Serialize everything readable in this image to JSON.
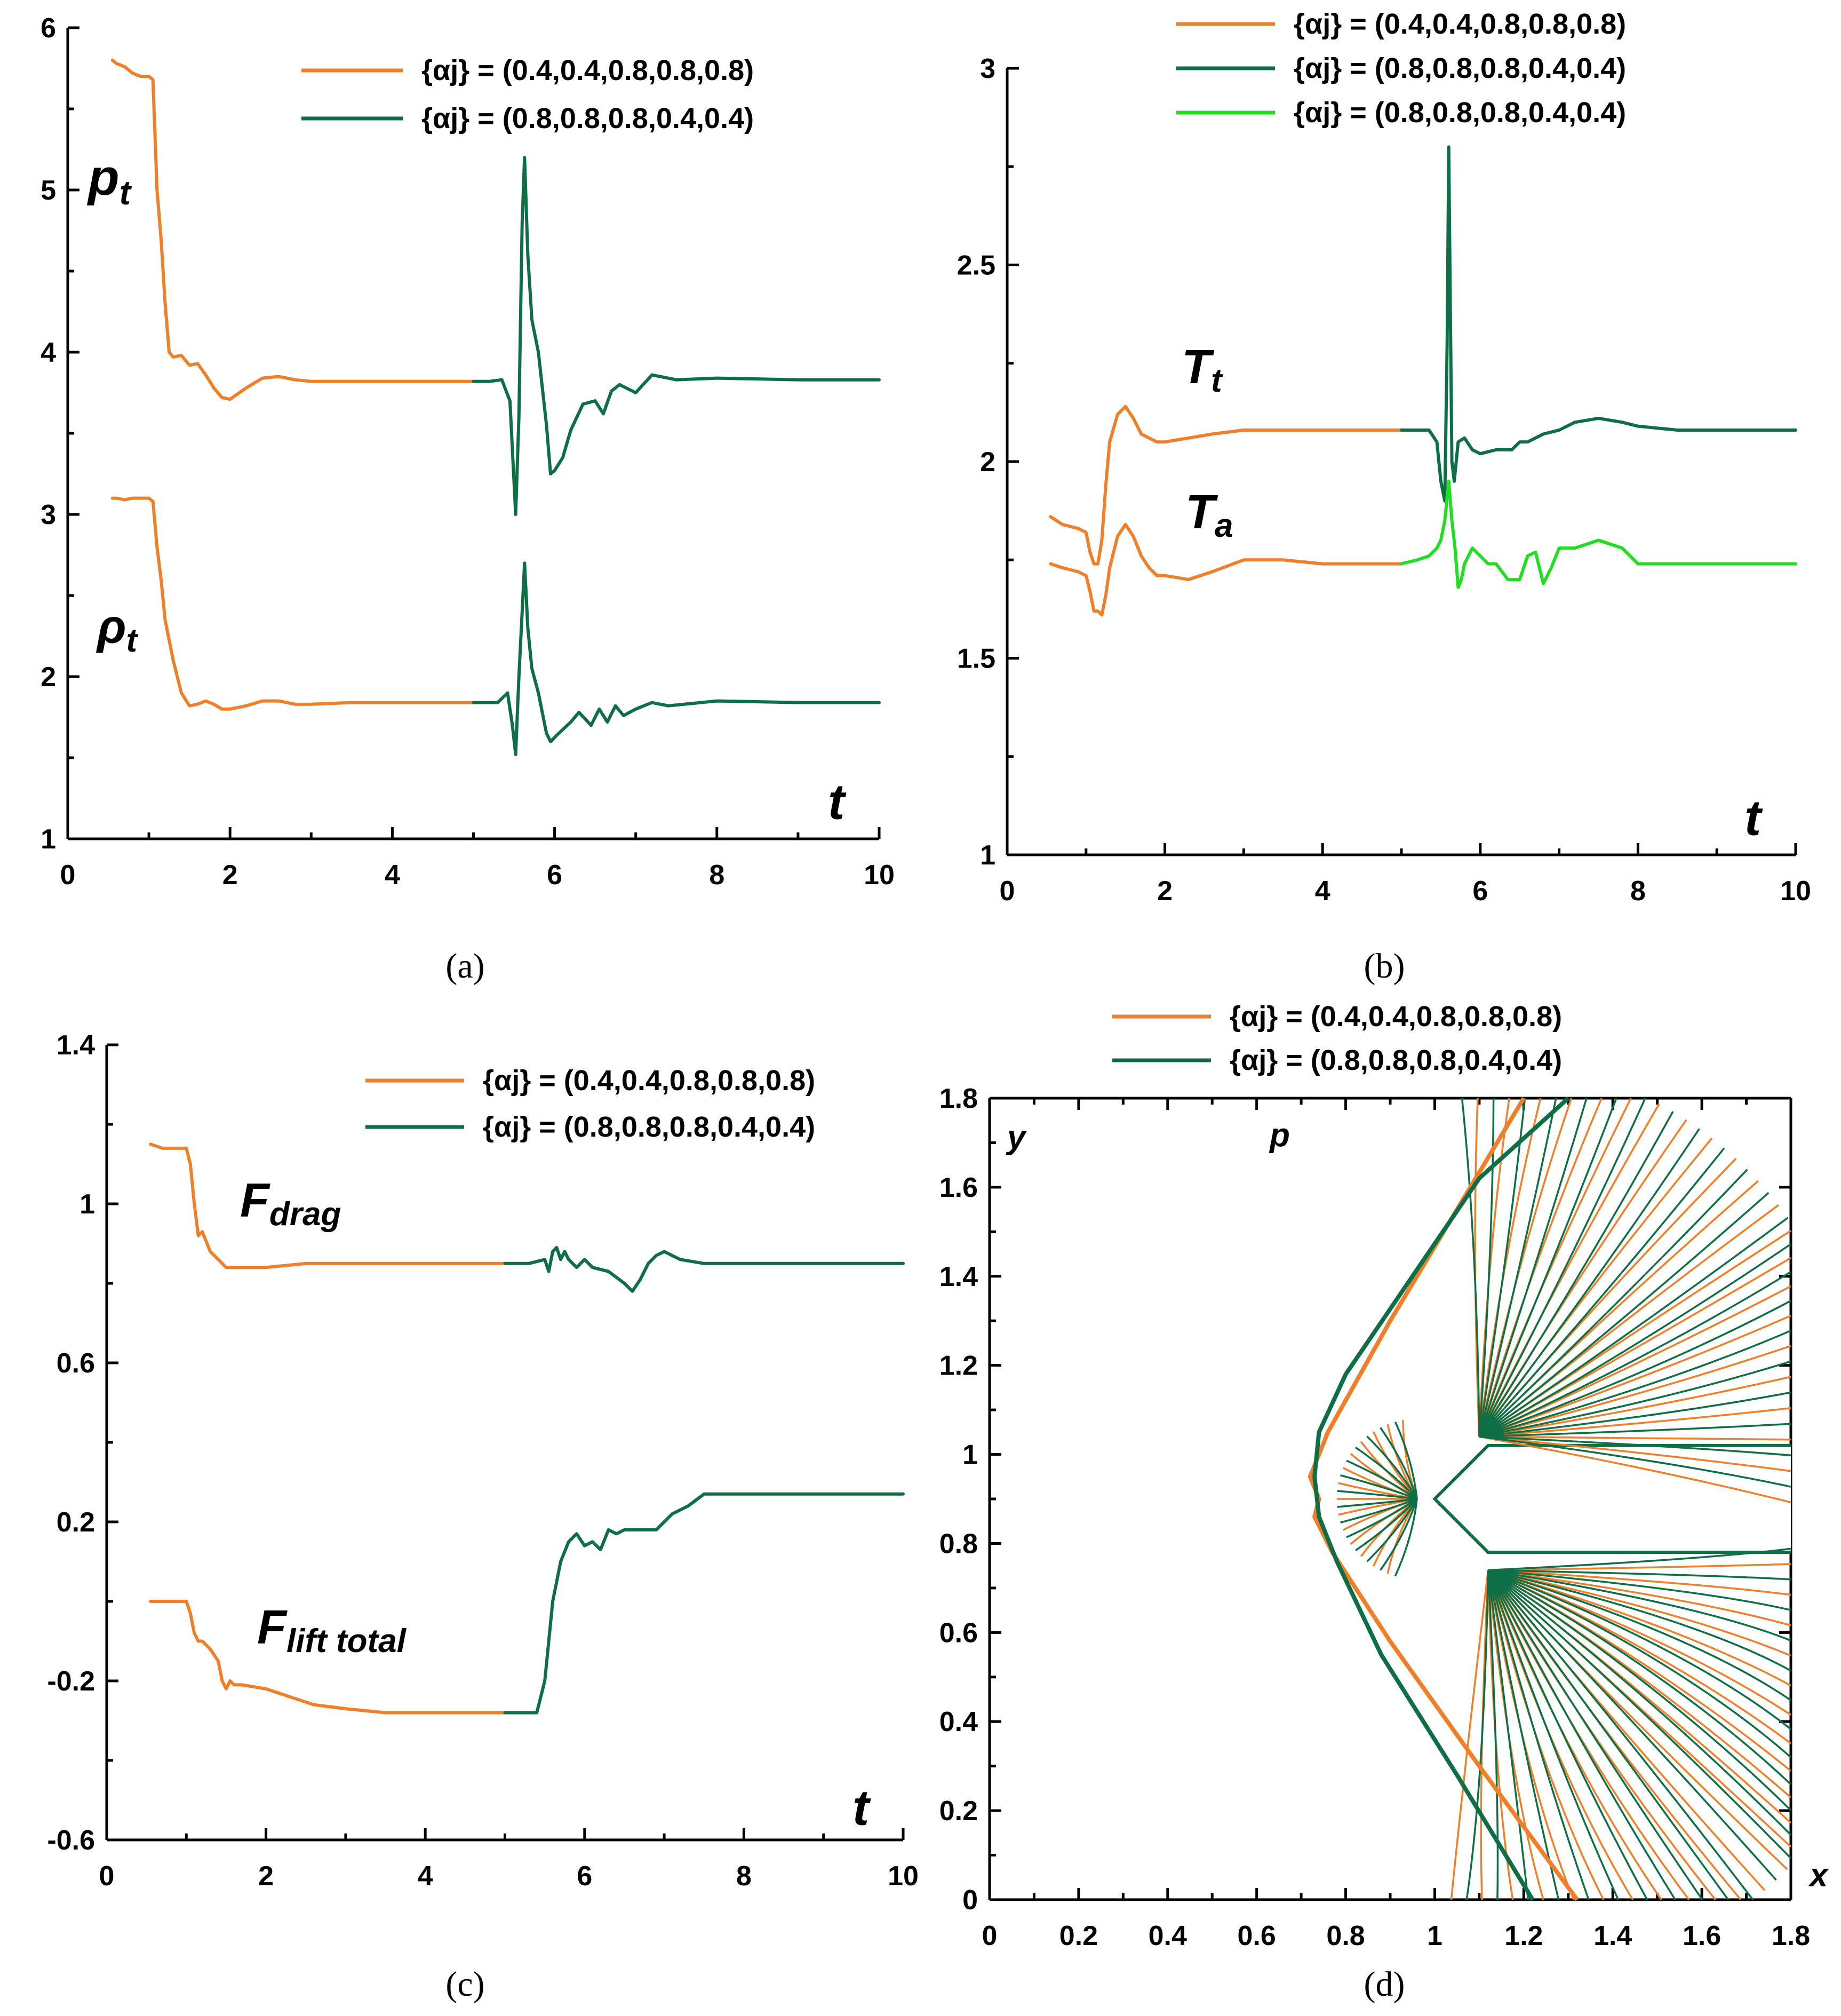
{
  "chart_data": [
    {
      "panel": "a",
      "caption": "(a)",
      "type": "line",
      "xlabel": "t",
      "xlim": [
        0,
        10
      ],
      "ylim": [
        1,
        6
      ],
      "x_ticks": [
        "0",
        "2",
        "4",
        "6",
        "8",
        "10"
      ],
      "y_ticks": [
        "1",
        "2",
        "3",
        "4",
        "5",
        "6"
      ],
      "legend": [
        {
          "label": "{αj} = (0.4,0.4,0.8,0.8,0.8)",
          "color": "#f07f2a"
        },
        {
          "label": "{αj} = (0.8,0.8,0.8,0.4,0.4)",
          "color": "#0e6e45"
        }
      ],
      "annotations": [
        {
          "text": "pt",
          "base": "p",
          "sub": "t"
        },
        {
          "text": "ρt",
          "base": "ρ",
          "sub": "t"
        }
      ],
      "series": [
        {
          "name": "pt, {αj} = (0.4,0.4,0.8,0.8,0.8)",
          "color": "#f07f2a",
          "x": [
            0.55,
            0.6,
            0.7,
            0.8,
            0.9,
            1.0,
            1.05,
            1.1,
            1.15,
            1.2,
            1.25,
            1.3,
            1.4,
            1.5,
            1.6,
            1.7,
            1.8,
            1.9,
            2.0,
            2.2,
            2.4,
            2.6,
            2.8,
            3.0,
            3.5,
            4.0,
            4.5,
            5.0
          ],
          "y": [
            5.8,
            5.78,
            5.76,
            5.72,
            5.7,
            5.7,
            5.68,
            5.0,
            4.7,
            4.3,
            4.0,
            3.97,
            3.98,
            3.92,
            3.93,
            3.86,
            3.78,
            3.72,
            3.71,
            3.78,
            3.84,
            3.85,
            3.83,
            3.82,
            3.82,
            3.82,
            3.82,
            3.82
          ]
        },
        {
          "name": "pt, {αj} = (0.8,0.8,0.8,0.4,0.4)",
          "color": "#0e6e45",
          "x": [
            5.0,
            5.2,
            5.35,
            5.45,
            5.52,
            5.56,
            5.6,
            5.63,
            5.67,
            5.72,
            5.8,
            5.9,
            5.95,
            6.0,
            6.1,
            6.2,
            6.35,
            6.5,
            6.6,
            6.7,
            6.8,
            7.0,
            7.2,
            7.3,
            7.5,
            8.0,
            9.0,
            10.0
          ],
          "y": [
            3.82,
            3.82,
            3.83,
            3.7,
            3.0,
            3.6,
            4.8,
            5.2,
            4.6,
            4.2,
            4.0,
            3.55,
            3.25,
            3.27,
            3.35,
            3.52,
            3.68,
            3.7,
            3.62,
            3.76,
            3.8,
            3.75,
            3.86,
            3.85,
            3.83,
            3.84,
            3.83,
            3.83
          ]
        },
        {
          "name": "ρt, {αj} = (0.4,0.4,0.8,0.8,0.8)",
          "color": "#f07f2a",
          "x": [
            0.55,
            0.6,
            0.7,
            0.8,
            0.9,
            1.0,
            1.05,
            1.1,
            1.15,
            1.2,
            1.3,
            1.4,
            1.5,
            1.6,
            1.7,
            1.8,
            1.9,
            2.0,
            2.2,
            2.4,
            2.6,
            2.8,
            3.0,
            3.5,
            4.0,
            4.5,
            5.0
          ],
          "y": [
            3.1,
            3.1,
            3.09,
            3.1,
            3.1,
            3.1,
            3.08,
            2.8,
            2.6,
            2.35,
            2.1,
            1.9,
            1.82,
            1.83,
            1.85,
            1.83,
            1.8,
            1.8,
            1.82,
            1.85,
            1.85,
            1.83,
            1.83,
            1.84,
            1.84,
            1.84,
            1.84
          ]
        },
        {
          "name": "ρt, {αj} = (0.8,0.8,0.8,0.4,0.4)",
          "color": "#0e6e45",
          "x": [
            5.0,
            5.3,
            5.42,
            5.48,
            5.52,
            5.56,
            5.6,
            5.63,
            5.67,
            5.72,
            5.8,
            5.9,
            5.95,
            6.05,
            6.2,
            6.3,
            6.45,
            6.55,
            6.65,
            6.75,
            6.85,
            7.0,
            7.2,
            7.4,
            8.0,
            9.0,
            10.0
          ],
          "y": [
            1.84,
            1.84,
            1.9,
            1.7,
            1.52,
            2.0,
            2.4,
            2.7,
            2.3,
            2.05,
            1.9,
            1.65,
            1.6,
            1.65,
            1.72,
            1.78,
            1.7,
            1.8,
            1.72,
            1.82,
            1.76,
            1.8,
            1.84,
            1.82,
            1.85,
            1.84,
            1.84
          ]
        }
      ]
    },
    {
      "panel": "b",
      "caption": "(b)",
      "type": "line",
      "xlabel": "t",
      "xlim": [
        0,
        10
      ],
      "ylim": [
        1,
        3
      ],
      "x_ticks": [
        "0",
        "2",
        "4",
        "6",
        "8",
        "10"
      ],
      "y_ticks": [
        "1",
        "1.5",
        "2",
        "2.5",
        "3"
      ],
      "legend": [
        {
          "label": "{αj} = (0.4,0.4,0.8,0.8,0.8)",
          "color": "#f07f2a"
        },
        {
          "label": "{αj} = (0.8,0.8,0.8,0.4,0.4)",
          "color": "#0e6e45"
        },
        {
          "label": "{αj} = (0.8,0.8,0.8,0.4,0.4)",
          "color": "#22dd22"
        }
      ],
      "annotations": [
        {
          "text": "Tt",
          "base": "T",
          "sub": "t"
        },
        {
          "text": "Ta",
          "base": "T",
          "sub": "a"
        }
      ],
      "series": [
        {
          "name": "Tt, {αj} = (0.4,0.4,0.8,0.8,0.8)",
          "color": "#f07f2a",
          "x": [
            0.55,
            0.7,
            0.9,
            1.0,
            1.05,
            1.1,
            1.15,
            1.2,
            1.25,
            1.3,
            1.4,
            1.5,
            1.6,
            1.7,
            1.8,
            1.9,
            2.0,
            2.3,
            2.6,
            3.0,
            3.5,
            4.0,
            4.5,
            5.0
          ],
          "y": [
            1.86,
            1.84,
            1.83,
            1.82,
            1.77,
            1.74,
            1.74,
            1.8,
            1.94,
            2.05,
            2.12,
            2.14,
            2.11,
            2.07,
            2.06,
            2.05,
            2.05,
            2.06,
            2.07,
            2.08,
            2.08,
            2.08,
            2.08,
            2.08
          ]
        },
        {
          "name": "Tt, {αj} = (0.8,0.8,0.8,0.4,0.4)",
          "color": "#0e6e45",
          "x": [
            5.0,
            5.2,
            5.35,
            5.45,
            5.5,
            5.55,
            5.58,
            5.6,
            5.62,
            5.64,
            5.67,
            5.72,
            5.8,
            5.9,
            6.0,
            6.2,
            6.4,
            6.5,
            6.6,
            6.8,
            7.0,
            7.2,
            7.5,
            7.8,
            8.0,
            8.5,
            9.0,
            10.0
          ],
          "y": [
            2.08,
            2.08,
            2.08,
            2.05,
            1.95,
            1.9,
            2.3,
            2.8,
            2.4,
            2.0,
            1.95,
            2.05,
            2.06,
            2.03,
            2.02,
            2.03,
            2.03,
            2.05,
            2.05,
            2.07,
            2.08,
            2.1,
            2.11,
            2.1,
            2.09,
            2.08,
            2.08,
            2.08
          ]
        },
        {
          "name": "Ta, {αj} = (0.4,0.4,0.8,0.8,0.8)",
          "color": "#f07f2a",
          "x": [
            0.55,
            0.7,
            0.9,
            1.0,
            1.05,
            1.1,
            1.15,
            1.2,
            1.25,
            1.3,
            1.4,
            1.5,
            1.6,
            1.7,
            1.8,
            1.9,
            2.0,
            2.3,
            2.6,
            3.0,
            3.5,
            4.0,
            4.5,
            5.0
          ],
          "y": [
            1.74,
            1.73,
            1.72,
            1.71,
            1.67,
            1.62,
            1.62,
            1.61,
            1.66,
            1.73,
            1.81,
            1.84,
            1.81,
            1.76,
            1.73,
            1.71,
            1.71,
            1.7,
            1.72,
            1.75,
            1.75,
            1.74,
            1.74,
            1.74
          ]
        },
        {
          "name": "Ta, {αj} = (0.8,0.8,0.8,0.4,0.4)",
          "color": "#22dd22",
          "x": [
            5.0,
            5.2,
            5.35,
            5.45,
            5.5,
            5.55,
            5.6,
            5.64,
            5.68,
            5.72,
            5.76,
            5.8,
            5.9,
            6.0,
            6.1,
            6.2,
            6.35,
            6.5,
            6.6,
            6.7,
            6.8,
            6.9,
            7.0,
            7.2,
            7.5,
            7.8,
            8.0,
            9.0,
            10.0
          ],
          "y": [
            1.74,
            1.75,
            1.76,
            1.78,
            1.8,
            1.85,
            1.95,
            1.85,
            1.78,
            1.68,
            1.7,
            1.74,
            1.78,
            1.76,
            1.74,
            1.74,
            1.7,
            1.7,
            1.76,
            1.77,
            1.69,
            1.73,
            1.78,
            1.78,
            1.8,
            1.78,
            1.74,
            1.74,
            1.74
          ]
        }
      ]
    },
    {
      "panel": "c",
      "caption": "(c)",
      "type": "line",
      "xlabel": "t",
      "xlim": [
        0,
        10
      ],
      "ylim": [
        -0.6,
        1.4
      ],
      "x_ticks": [
        "0",
        "2",
        "4",
        "6",
        "8",
        "10"
      ],
      "y_ticks": [
        "-0.6",
        "-0.2",
        "0.2",
        "0.6",
        "1",
        "1.4"
      ],
      "legend": [
        {
          "label": "{αj} = (0.4,0.4,0.8,0.8,0.8)",
          "color": "#f07f2a"
        },
        {
          "label": "{αj} = (0.8,0.8,0.8,0.4,0.4)",
          "color": "#0e6e45"
        }
      ],
      "annotations": [
        {
          "text": "Fdrag",
          "base": "F",
          "sub": "drag"
        },
        {
          "text": "Flift total",
          "base": "F",
          "sub": "lift total"
        }
      ],
      "series": [
        {
          "name": "Fdrag, {αj} = (0.4,0.4,0.8,0.8,0.8)",
          "color": "#f07f2a",
          "x": [
            0.55,
            0.7,
            0.9,
            1.0,
            1.05,
            1.1,
            1.15,
            1.2,
            1.3,
            1.4,
            1.5,
            1.6,
            1.7,
            1.8,
            2.0,
            2.5,
            3.0,
            3.5,
            4.0,
            4.5,
            5.0
          ],
          "y": [
            1.15,
            1.14,
            1.14,
            1.14,
            1.1,
            1.0,
            0.92,
            0.93,
            0.88,
            0.86,
            0.84,
            0.84,
            0.84,
            0.84,
            0.84,
            0.85,
            0.85,
            0.85,
            0.85,
            0.85,
            0.85
          ]
        },
        {
          "name": "Fdrag, {αj} = (0.8,0.8,0.8,0.4,0.4)",
          "color": "#0e6e45",
          "x": [
            5.0,
            5.3,
            5.5,
            5.55,
            5.6,
            5.65,
            5.7,
            5.75,
            5.8,
            5.9,
            6.0,
            6.1,
            6.3,
            6.5,
            6.6,
            6.7,
            6.8,
            6.9,
            7.0,
            7.2,
            7.5,
            8.0,
            9.0,
            10.0
          ],
          "y": [
            0.85,
            0.85,
            0.86,
            0.83,
            0.88,
            0.89,
            0.86,
            0.88,
            0.86,
            0.84,
            0.86,
            0.84,
            0.83,
            0.8,
            0.78,
            0.81,
            0.85,
            0.87,
            0.88,
            0.86,
            0.85,
            0.85,
            0.85,
            0.85
          ]
        },
        {
          "name": "Flift total, {αj} = (0.4,0.4,0.8,0.8,0.8)",
          "color": "#f07f2a",
          "x": [
            0.55,
            0.7,
            0.9,
            1.0,
            1.05,
            1.1,
            1.15,
            1.2,
            1.3,
            1.4,
            1.45,
            1.5,
            1.55,
            1.6,
            1.7,
            2.0,
            2.3,
            2.6,
            3.0,
            3.5,
            4.0,
            4.5,
            5.0
          ],
          "y": [
            0.0,
            0.0,
            0.0,
            0.0,
            -0.03,
            -0.08,
            -0.1,
            -0.1,
            -0.12,
            -0.15,
            -0.2,
            -0.22,
            -0.2,
            -0.21,
            -0.21,
            -0.22,
            -0.24,
            -0.26,
            -0.27,
            -0.28,
            -0.28,
            -0.28,
            -0.28
          ]
        },
        {
          "name": "Flift total, {αj} = (0.8,0.8,0.8,0.4,0.4)",
          "color": "#0e6e45",
          "x": [
            5.0,
            5.2,
            5.4,
            5.5,
            5.6,
            5.7,
            5.8,
            5.9,
            6.0,
            6.1,
            6.2,
            6.3,
            6.4,
            6.5,
            6.7,
            6.9,
            7.0,
            7.1,
            7.3,
            7.5,
            7.8,
            8.0,
            8.5,
            9.0,
            10.0
          ],
          "y": [
            -0.28,
            -0.28,
            -0.28,
            -0.2,
            0.0,
            0.1,
            0.15,
            0.17,
            0.14,
            0.15,
            0.13,
            0.18,
            0.17,
            0.18,
            0.18,
            0.18,
            0.2,
            0.22,
            0.24,
            0.27,
            0.27,
            0.27,
            0.27,
            0.27,
            0.27
          ]
        }
      ]
    },
    {
      "panel": "d",
      "caption": "(d)",
      "type": "line",
      "description": "pressure isolines",
      "xlabel": "x",
      "ylabel": "y",
      "field_label": "p",
      "xlim": [
        0,
        1.8
      ],
      "ylim": [
        0,
        1.8
      ],
      "x_ticks": [
        "0",
        "0.2",
        "0.4",
        "0.6",
        "0.8",
        "1",
        "1.2",
        "1.4",
        "1.6",
        "1.8"
      ],
      "y_ticks": [
        "0",
        "0.2",
        "0.4",
        "0.6",
        "0.8",
        "1",
        "1.2",
        "1.4",
        "1.6",
        "1.8"
      ],
      "legend": [
        {
          "label": "{αj} = (0.4,0.4,0.8,0.8,0.8)",
          "color": "#f07f2a"
        },
        {
          "label": "{αj} = (0.8,0.8,0.8,0.4,0.4)",
          "color": "#0e6e45"
        }
      ],
      "body": {
        "nose": [
          1.0,
          0.9
        ],
        "upper_corner": [
          1.12,
          1.02
        ],
        "lower_corner": [
          1.12,
          0.78
        ],
        "upper_edge_y": 1.02,
        "lower_edge_y": 0.78
      },
      "shocks": [
        {
          "name": "shock {αj} = (0.4,0.4,0.8,0.8,0.8)",
          "color": "#f07f2a",
          "x": [
            1.32,
            1.1,
            0.9,
            0.77,
            0.73,
            0.74,
            0.72,
            0.76,
            0.9,
            1.05,
            1.2
          ],
          "y": [
            0.0,
            0.3,
            0.58,
            0.78,
            0.86,
            0.9,
            0.95,
            1.05,
            1.3,
            1.55,
            1.8
          ]
        },
        {
          "name": "shock {αj} = (0.8,0.8,0.8,0.4,0.4)",
          "color": "#0e6e45",
          "x": [
            1.22,
            1.05,
            0.88,
            0.78,
            0.74,
            0.73,
            0.74,
            0.8,
            0.95,
            1.1,
            1.3
          ],
          "y": [
            0.0,
            0.28,
            0.55,
            0.76,
            0.86,
            0.95,
            1.05,
            1.18,
            1.4,
            1.62,
            1.8
          ]
        }
      ]
    }
  ]
}
